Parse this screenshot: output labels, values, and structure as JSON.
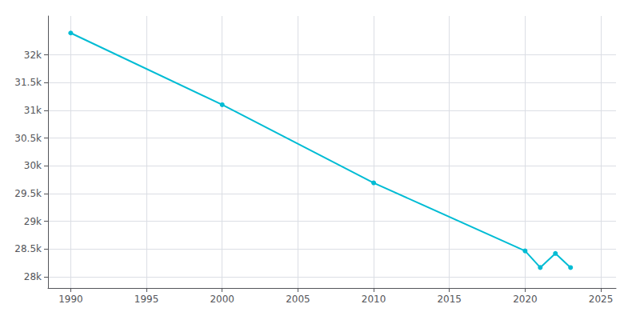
{
  "chart_data": {
    "type": "line",
    "x": [
      1990,
      2000,
      2010,
      2020,
      2021,
      2022,
      2023
    ],
    "values": [
      32394,
      31101,
      29694,
      28468,
      28169,
      28422,
      28168
    ],
    "color": "#00bcd4",
    "marker": "circle",
    "xlim": [
      1988.5,
      2026
    ],
    "xticks": [
      1990,
      1995,
      2000,
      2005,
      2010,
      2015,
      2020,
      2025
    ],
    "ylim": [
      27800,
      32700
    ],
    "yticks": [
      {
        "value": 28000,
        "label": "28k"
      },
      {
        "value": 28500,
        "label": "28.5k"
      },
      {
        "value": 29000,
        "label": "29k"
      },
      {
        "value": 29500,
        "label": "29.5k"
      },
      {
        "value": 30000,
        "label": "30k"
      },
      {
        "value": 30500,
        "label": "30.5k"
      },
      {
        "value": 31000,
        "label": "31k"
      },
      {
        "value": 31500,
        "label": "31.5k"
      },
      {
        "value": 32000,
        "label": "32k"
      }
    ],
    "grid": true
  }
}
